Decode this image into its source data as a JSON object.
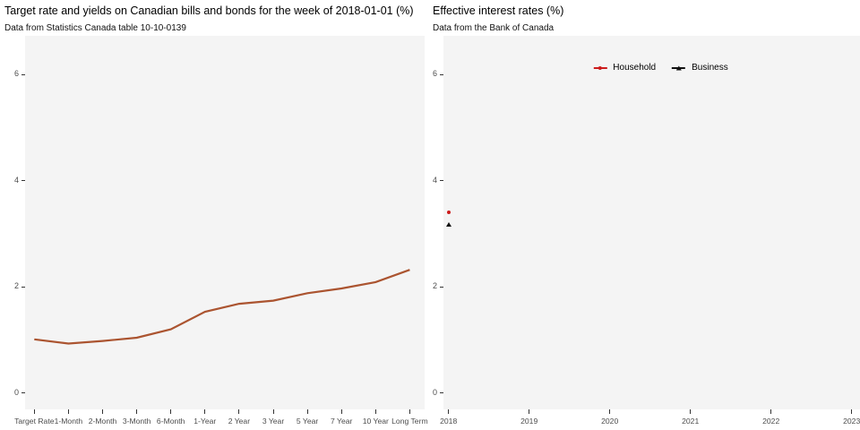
{
  "colors": {
    "figure_background": "#ffffff",
    "panel_background": "#f4f4f4",
    "axis_text": "#4d4d4d",
    "tick_mark": "#333333",
    "title_text": "#000000",
    "yield_line": "#ab5430",
    "household_red": "#cc1b1b",
    "business_black": "#111111"
  },
  "chart_data": [
    {
      "type": "line",
      "title": "Target rate and yields on Canadian bills and bonds for the week of 2018-01-01 (%)",
      "subtitle": "Data from Statistics Canada table 10-10-0139",
      "categories": [
        "Target Rate",
        "1-Month",
        "2-Month",
        "3-Month",
        "6-Month",
        "1-Year",
        "2 Year",
        "3 Year",
        "5 Year",
        "7 Year",
        "10 Year",
        "Long Term"
      ],
      "values": [
        1.0,
        0.92,
        0.97,
        1.03,
        1.19,
        1.52,
        1.67,
        1.73,
        1.87,
        1.96,
        2.08,
        2.31
      ],
      "xlabel": "",
      "ylabel": "",
      "y_ticks": [
        0,
        2,
        4,
        6
      ],
      "ylim": [
        -0.35,
        6.7
      ],
      "grid": false,
      "legend_position": "none",
      "line_color": "#ab5430",
      "panel_background": "#f4f4f4"
    },
    {
      "type": "scatter",
      "title": "Effective interest rates (%)",
      "subtitle": "Data from the Bank of Canada",
      "x_ticks": [
        2018,
        2019,
        2020,
        2021,
        2022,
        2023
      ],
      "y_ticks": [
        0,
        2,
        4,
        6
      ],
      "xlim": [
        2017.96,
        2023.1
      ],
      "ylim": [
        -0.35,
        6.7
      ],
      "xlabel": "",
      "ylabel": "",
      "grid": false,
      "legend_position": "top-center-inside",
      "panel_background": "#f4f4f4",
      "series": [
        {
          "name": "Household",
          "marker": "circle",
          "color": "#cc1b1b",
          "points": [
            {
              "x": 2018.0,
              "y": 3.4
            }
          ]
        },
        {
          "name": "Business",
          "marker": "triangle",
          "color": "#111111",
          "points": [
            {
              "x": 2018.0,
              "y": 3.16
            }
          ]
        }
      ]
    }
  ]
}
